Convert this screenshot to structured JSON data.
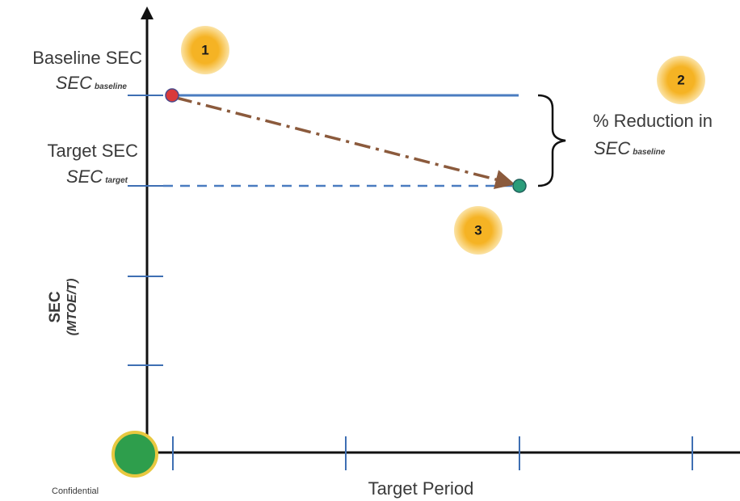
{
  "labels": {
    "baseline_title": "Baseline SEC",
    "baseline_symbol": "SEC",
    "baseline_subscript": "baseline",
    "target_title": "Target SEC",
    "target_symbol": "SEC",
    "target_subscript": "target",
    "reduction_line1": "% Reduction in",
    "reduction_symbol": "SEC",
    "reduction_subscript": "baseline",
    "y_axis_title": "SEC",
    "y_axis_unit": "(MTOE/T)",
    "x_axis_title": "Target Period",
    "footer": "Confidential"
  },
  "badges": [
    {
      "id": "1",
      "text": "1"
    },
    {
      "id": "2",
      "text": "2"
    },
    {
      "id": "3",
      "text": "3"
    }
  ],
  "colors": {
    "axis": "#111111",
    "tick": "#3e6fb3",
    "baseline_line": "#4a7cc0",
    "target_line": "#4a7cc0",
    "trend_arrow": "#8b5a3c",
    "baseline_point": "#d93a3a",
    "target_point": "#2a9d7a",
    "badge_fill": "#f5b324",
    "badge_glow": "#fbe3a6",
    "origin_fill": "#2e9e4c",
    "origin_ring": "#e8c840"
  }
}
